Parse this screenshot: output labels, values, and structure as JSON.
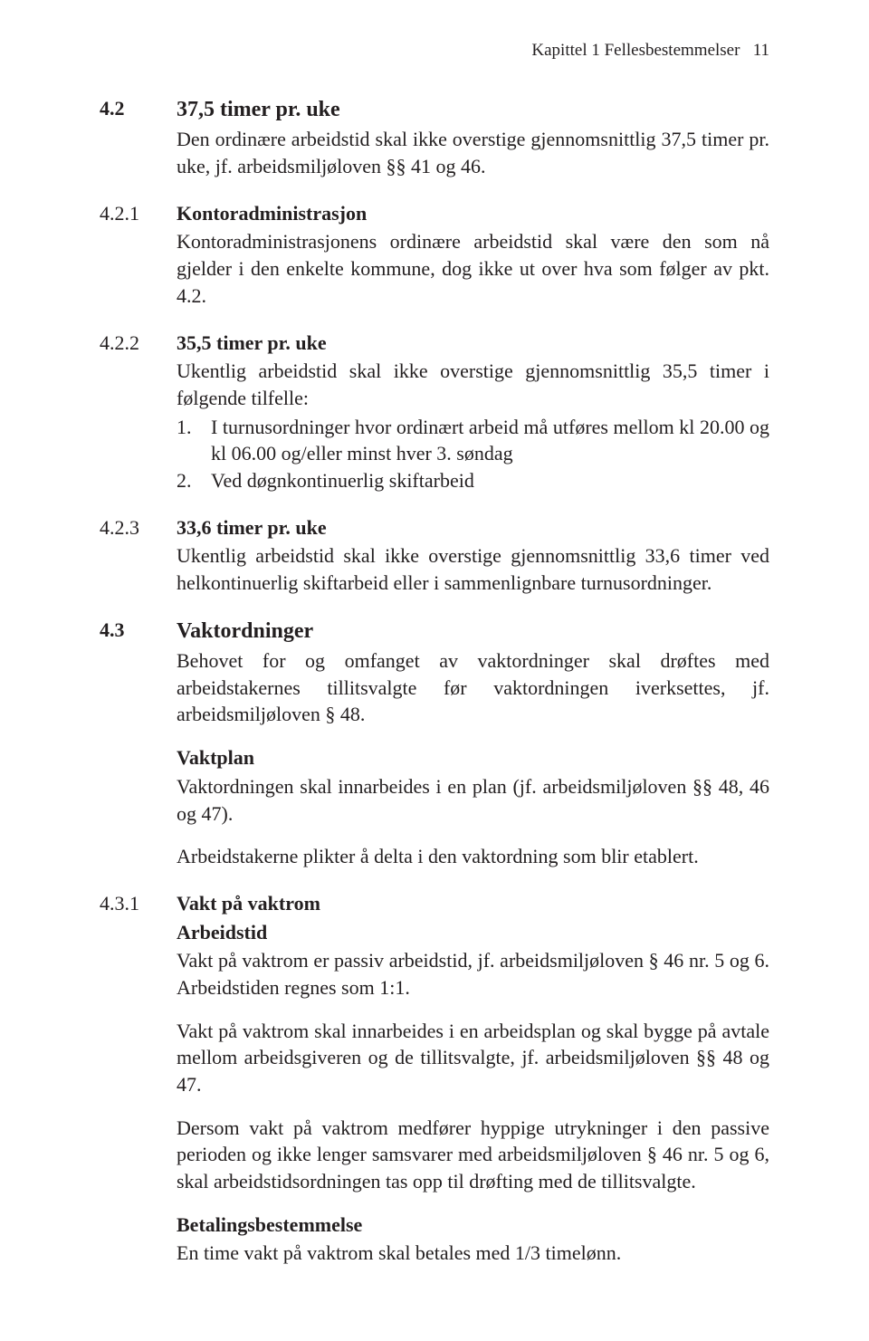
{
  "header": {
    "chapter_label": "Kapittel 1 Fellesbestemmelser",
    "page_number": "11"
  },
  "sections": [
    {
      "num": "4.2",
      "title": "37,5 timer pr. uke",
      "num_bold": true,
      "title_size": "h2",
      "paras": [
        "Den ordinære arbeidstid skal ikke overstige gjennomsnittlig 37,5 timer pr. uke, jf. arbeidsmiljøloven §§ 41 og 46."
      ]
    },
    {
      "num": "4.2.1",
      "title": "Kontoradministrasjon",
      "paras": [
        "Kontoradministrasjonens ordinære arbeidstid skal være den som nå gjelder i den enkelte kommune, dog ikke ut over hva som følger av pkt. 4.2."
      ]
    },
    {
      "num": "4.2.2",
      "title": "35,5 timer pr. uke",
      "paras": [
        "Ukentlig arbeidstid skal ikke overstige gjennomsnittlig 35,5 timer i følgende tilfelle:"
      ],
      "list": [
        "I turnusordninger hvor ordinært arbeid må utføres mellom kl 20.00 og kl 06.00 og/eller minst hver 3. søndag",
        "Ved døgnkontinuerlig skiftarbeid"
      ]
    },
    {
      "num": "4.2.3",
      "title": "33,6 timer pr. uke",
      "paras": [
        "Ukentlig arbeidstid skal ikke overstige gjennomsnittlig 33,6 timer ved helkontinuerlig skiftarbeid eller i sammenlignbare turnusordninger."
      ]
    },
    {
      "num": "4.3",
      "title": "Vaktordninger",
      "num_bold": true,
      "title_size": "h2",
      "paras": [
        "Behovet for og omfanget av vaktordninger skal drøftes med arbeidstakernes tillitsvalgte før vaktordningen iverksettes, jf. arbeidsmiljøloven § 48."
      ],
      "subgroups": [
        {
          "subhead": "Vaktplan",
          "paras": [
            "Vaktordningen skal innarbeides i en plan (jf. arbeidsmiljøloven §§ 48, 46 og 47).",
            "Arbeidstakerne plikter å delta i den vaktordning som blir etablert."
          ]
        }
      ]
    },
    {
      "num": "4.3.1",
      "title": "Vakt på vaktrom",
      "subgroups": [
        {
          "subhead": "Arbeidstid",
          "paras": [
            "Vakt på vaktrom er passiv arbeidstid, jf. arbeidsmiljøloven § 46 nr. 5 og 6. Arbeidstiden regnes som 1:1.",
            "Vakt på vaktrom skal innarbeides i en arbeidsplan og skal bygge på avtale mellom arbeidsgiveren og de tillitsvalgte, jf. arbeidsmiljøloven §§ 48 og 47.",
            "Dersom vakt på vaktrom medfører hyppige utrykninger i den passive perioden og ikke lenger samsvarer med arbeidsmiljøloven § 46 nr. 5 og 6, skal arbeidstidsordningen tas opp til drøfting med de tillitsvalgte."
          ]
        },
        {
          "subhead": "Betalingsbestemmelse",
          "paras": [
            "En time vakt på vaktrom skal betales med 1/3 timelønn."
          ]
        }
      ]
    }
  ]
}
